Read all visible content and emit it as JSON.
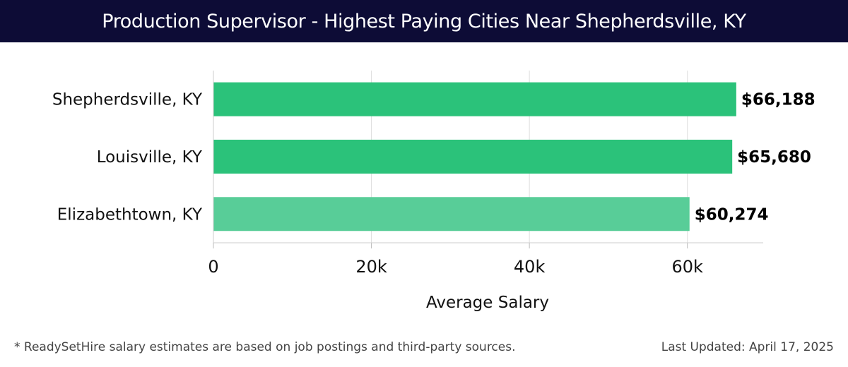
{
  "header": {
    "title": "Production Supervisor - Highest Paying Cities Near Shepherdsville, KY"
  },
  "chart_data": {
    "type": "bar",
    "orientation": "horizontal",
    "title": "Production Supervisor - Highest Paying Cities Near Shepherdsville, KY",
    "categories": [
      "Shepherdsville, KY",
      "Louisville, KY",
      "Elizabethtown, KY"
    ],
    "values": [
      66188,
      65680,
      60274
    ],
    "value_labels": [
      "$66,188",
      "$65,680",
      "$60,274"
    ],
    "xlabel": "Average Salary",
    "ylabel": "",
    "xlim": [
      0,
      69600
    ],
    "x_ticks": [
      0,
      20000,
      40000,
      60000
    ],
    "x_tick_labels": [
      "0",
      "20k",
      "40k",
      "60k"
    ],
    "grid": "vertical",
    "bar_colors": [
      "#2bc27a",
      "#2bc27a",
      "#58cd98"
    ]
  },
  "footer": {
    "note": "* ReadySetHire salary estimates are based on job postings and third-party sources.",
    "updated": "Last Updated: April 17, 2025"
  }
}
